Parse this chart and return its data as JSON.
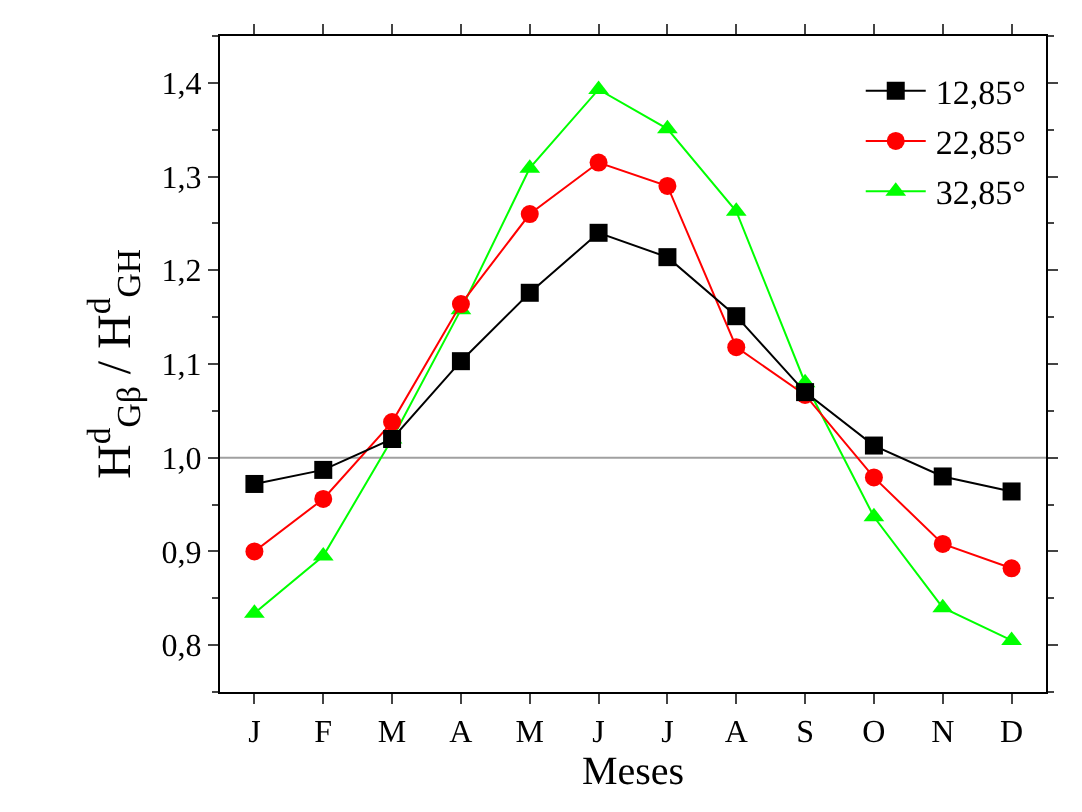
{
  "chart_data": {
    "type": "line",
    "xlabel": "Meses",
    "ylabel": "H$^{d}$$_{Gβ}$ / H$^{d}$$_{GH}$",
    "categories": [
      "J",
      "F",
      "M",
      "A",
      "M",
      "J",
      "J",
      "A",
      "S",
      "O",
      "N",
      "D"
    ],
    "series": [
      {
        "name": "12,85°",
        "color": "#000000",
        "marker": "square",
        "values": [
          0.972,
          0.987,
          1.02,
          1.103,
          1.176,
          1.24,
          1.214,
          1.151,
          1.07,
          1.013,
          0.98,
          0.964
        ]
      },
      {
        "name": "22,85°",
        "color": "#ff0000",
        "marker": "circle",
        "values": [
          0.9,
          0.956,
          1.038,
          1.164,
          1.26,
          1.315,
          1.29,
          1.118,
          1.067,
          0.979,
          0.908,
          0.882
        ]
      },
      {
        "name": "32,85°",
        "color": "#00ff00",
        "marker": "triangle",
        "values": [
          0.834,
          0.895,
          1.02,
          1.158,
          1.309,
          1.393,
          1.351,
          1.263,
          1.08,
          0.937,
          0.84,
          0.805
        ]
      }
    ],
    "ylim": [
      0.75,
      1.45
    ],
    "yticks": [
      {
        "value": 0.8,
        "label": "0,8"
      },
      {
        "value": 0.9,
        "label": "0,9"
      },
      {
        "value": 1.0,
        "label": "1,0"
      },
      {
        "value": 1.1,
        "label": "1,1"
      },
      {
        "value": 1.2,
        "label": "1,2"
      },
      {
        "value": 1.3,
        "label": "1,3"
      },
      {
        "value": 1.4,
        "label": "1,4"
      }
    ],
    "ref_lines": [
      {
        "axis": "y",
        "value": 1.0,
        "color": "#a0a0a0"
      }
    ],
    "legend": "top right",
    "grid": false,
    "line_style": "solid"
  }
}
